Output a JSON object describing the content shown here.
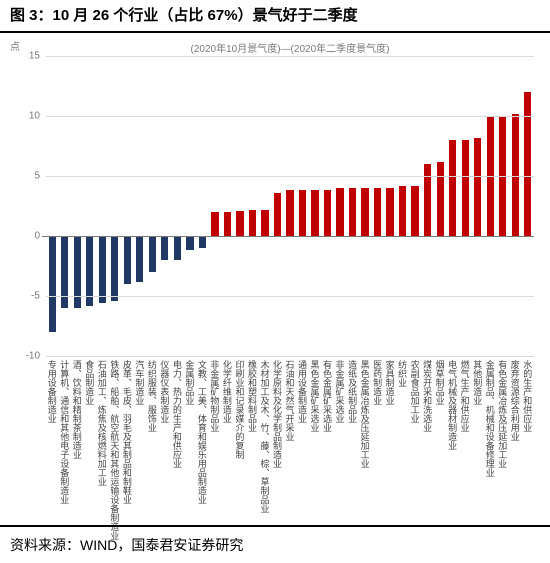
{
  "caption": "图 3：10 月 26 个行业（占比 67%）景气好于二季度",
  "source_prefix": "资料来源：",
  "source_text": "WIND，国泰君安证券研究",
  "chart": {
    "type": "bar",
    "legend": "(2020年10月景气度)—(2020年二季度景气度)",
    "y_axis_title": "点",
    "ylim": [
      -10,
      15
    ],
    "ytick_step": 5,
    "background_color": "#ffffff",
    "grid_color": "#d9d9d9",
    "axis_color": "#7a7a7a",
    "tick_fontsize": 10,
    "xlabel_fontsize": 9,
    "positive_color": "#c00000",
    "negative_color": "#1f3864",
    "bar_width_ratio": 0.58,
    "categories": [
      "专用设备制造业",
      "计算机、通信和其他电子设备制造业",
      "酒、饮料和精制茶制造业",
      "食品制造业",
      "石油加工、炼焦及核燃料加工业",
      "铁路、船舶、航空航天和其他运输设备制造业",
      "皮革、毛皮、羽毛及其制品和制鞋业",
      "汽车制造业",
      "纺织服装、服饰业",
      "仪器仪表制造业",
      "电力、热力的生产和供应业",
      "金属制品业",
      "文教、工美、体育和娱乐用品制造业",
      "非金属矿物制品业",
      "化学纤维制造业",
      "印刷业和记录媒介的复制",
      "橡胶和塑料制品业",
      "木材加工及木、竹、藤、棕、草制品业",
      "化学原料及化学制品制造业",
      "石油和天然气开采业",
      "通用设备制造业",
      "黑色金属矿采选业",
      "有色金属矿采选业",
      "非金属矿采选业",
      "造纸及纸制品业",
      "黑色金属冶炼及压延加工业",
      "医药制造业",
      "家具制造业",
      "纺织业",
      "农副食品加工业",
      "煤炭开采和洗选业",
      "烟草制品业",
      "电气机械及器材制造业",
      "燃气生产和供应业",
      "其他制造业",
      "金属制品、机械和设备修理业",
      "有色金属冶炼及压延加工业",
      "废弃资源综合利用业",
      "水的生产和供应业"
    ],
    "values": [
      -8.0,
      -6.0,
      -6.0,
      -5.8,
      -5.6,
      -5.4,
      -4.0,
      -3.8,
      -3.0,
      -2.0,
      -2.0,
      -1.2,
      -1.0,
      2.0,
      2.0,
      2.1,
      2.2,
      2.2,
      3.6,
      3.8,
      3.8,
      3.8,
      3.8,
      4.0,
      4.0,
      4.0,
      4.0,
      4.0,
      4.2,
      4.2,
      6.0,
      6.2,
      8.0,
      8.0,
      8.2,
      10.0,
      10.0,
      10.2,
      12.0
    ]
  }
}
